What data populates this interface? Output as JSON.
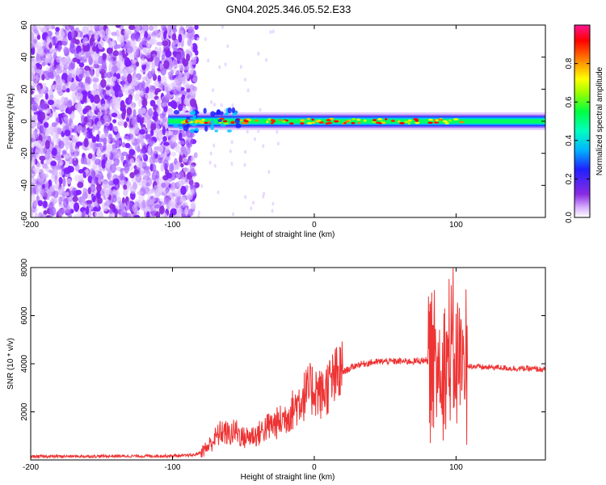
{
  "title": "GN04.2025.346.05.52.E33",
  "chart_data": [
    {
      "type": "heatmap",
      "xlabel": "Height of straight line (km)",
      "ylabel": "Frequency (Hz)",
      "xlim": [
        -200,
        163
      ],
      "ylim": [
        -60,
        60
      ],
      "x_ticks": [
        -200,
        -100,
        0,
        100
      ],
      "y_ticks": [
        -60,
        -40,
        -20,
        0,
        20,
        40,
        60
      ],
      "colorbar": {
        "label": "Normalized spectral amplitude",
        "range": [
          0,
          1
        ],
        "ticks": [
          0,
          0.2,
          0.4,
          0.6,
          0.8
        ],
        "tick_labels": [
          "0.0",
          "0.2",
          "0.4",
          "0.6",
          "0.8"
        ],
        "colormap": [
          "#ffffff",
          "#8a2be2",
          "#2020ff",
          "#00c8ff",
          "#00ff80",
          "#ffff00",
          "#ff8000",
          "#ff0000",
          "#ff1493"
        ]
      },
      "regions": [
        {
          "x_range": [
            -200,
            -85
          ],
          "y_range": [
            -60,
            60
          ],
          "description": "scattered purple noise",
          "amplitude": [
            0.05,
            0.15
          ]
        },
        {
          "x_range": [
            -103,
            163
          ],
          "center_freq": 0,
          "band_halfwidth": 4,
          "amplitude": [
            0.35,
            0.9
          ]
        }
      ],
      "grid": false
    },
    {
      "type": "line",
      "xlabel": "Height of straight line (km)",
      "ylabel": "SNR (10 * v/v)",
      "xlim": [
        -200,
        163
      ],
      "ylim": [
        0,
        8000
      ],
      "x_ticks": [
        -200,
        -100,
        0,
        100
      ],
      "y_ticks": [
        2000,
        4000,
        6000,
        8000
      ],
      "grid": false,
      "series": [
        {
          "color": "#ee3333",
          "x": [
            -200,
            -180,
            -160,
            -140,
            -120,
            -100,
            -90,
            -85,
            -80,
            -75,
            -70,
            -65,
            -60,
            -55,
            -50,
            -45,
            -40,
            -35,
            -30,
            -25,
            -20,
            -15,
            -10,
            -5,
            0,
            5,
            10,
            15,
            20,
            25,
            30,
            40,
            50,
            60,
            70,
            80,
            85,
            90,
            95,
            100,
            105,
            110,
            120,
            130,
            140,
            150,
            163
          ],
          "y": [
            140,
            150,
            150,
            160,
            160,
            170,
            180,
            200,
            320,
            550,
            900,
            1200,
            1050,
            1200,
            900,
            1000,
            1050,
            1300,
            1450,
            1550,
            1800,
            2100,
            2500,
            2800,
            3000,
            2700,
            3100,
            3400,
            3650,
            3800,
            3950,
            4050,
            4100,
            4100,
            4100,
            4150,
            4150,
            4100,
            4200,
            4250,
            4000,
            3900,
            3850,
            3850,
            3800,
            3800,
            3750
          ]
        }
      ]
    }
  ]
}
